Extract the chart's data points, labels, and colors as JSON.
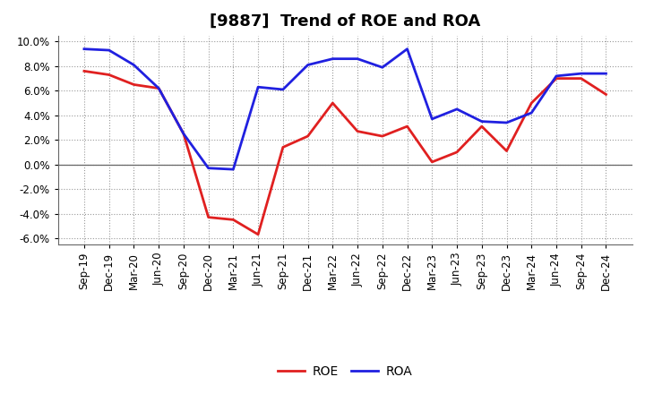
{
  "title": "[9887]  Trend of ROE and ROA",
  "xlabels": [
    "Sep-19",
    "Dec-19",
    "Mar-20",
    "Jun-20",
    "Sep-20",
    "Dec-20",
    "Mar-21",
    "Jun-21",
    "Sep-21",
    "Dec-21",
    "Mar-22",
    "Jun-22",
    "Sep-22",
    "Dec-22",
    "Mar-23",
    "Jun-23",
    "Sep-23",
    "Dec-23",
    "Mar-24",
    "Jun-24",
    "Sep-24",
    "Dec-24"
  ],
  "roe": [
    7.6,
    7.3,
    6.5,
    6.2,
    2.5,
    -4.3,
    -4.5,
    -5.7,
    1.4,
    2.3,
    5.0,
    2.7,
    2.3,
    3.1,
    0.2,
    1.0,
    3.1,
    1.1,
    5.0,
    7.0,
    7.0,
    5.7
  ],
  "roa": [
    9.4,
    9.3,
    8.1,
    6.2,
    2.5,
    -0.3,
    -0.4,
    6.3,
    6.1,
    8.1,
    8.6,
    8.6,
    7.9,
    9.4,
    3.7,
    4.5,
    3.5,
    3.4,
    4.2,
    7.2,
    7.4,
    7.4
  ],
  "roe_color": "#e02020",
  "roa_color": "#2020e0",
  "ylim": [
    -6.5,
    10.5
  ],
  "yticks": [
    -6.0,
    -4.0,
    -2.0,
    0.0,
    2.0,
    4.0,
    6.0,
    8.0,
    10.0
  ],
  "bg_color": "#ffffff",
  "grid_color": "#999999",
  "line_width": 2.0,
  "title_fontsize": 13,
  "tick_fontsize": 8.5,
  "legend_fontsize": 10
}
